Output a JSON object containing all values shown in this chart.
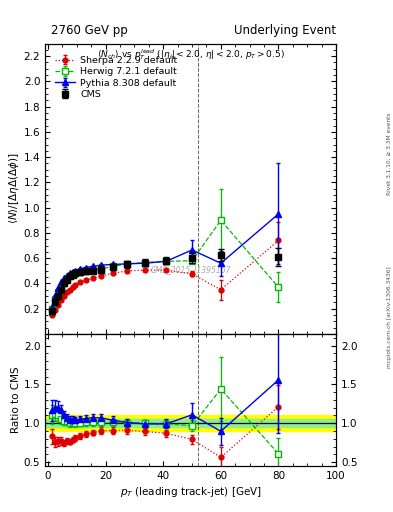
{
  "title_left": "2760 GeV pp",
  "title_right": "Underlying Event",
  "ylabel_main": "$\\langle N\\rangle/[\\Delta\\eta\\Delta(\\Delta\\phi)]$",
  "ylabel_ratio": "Ratio to CMS",
  "xlabel": "$p_T$ (leading track-jet) [GeV]",
  "inner_title": "$\\langle N_{ch}\\rangle$ vs $p_T^{lead}$ ($|\\eta_j|<2.0$, $\\eta|<2.0$, $p_T>0.5$)",
  "watermark": "CMS_2015_I1395107",
  "side_label": "Rivet 3.1.10, ≥ 3.3M events",
  "side_label2": "mcplots.cern.ch [arXiv:1306.3436]",
  "cms_x": [
    1.5,
    2.5,
    3.5,
    4.5,
    5.5,
    6.5,
    7.5,
    8.5,
    9.5,
    11,
    13,
    15.5,
    18.5,
    22.5,
    27.5,
    33.5,
    41,
    50,
    60,
    80
  ],
  "cms_y": [
    0.18,
    0.25,
    0.3,
    0.35,
    0.4,
    0.43,
    0.46,
    0.47,
    0.48,
    0.49,
    0.495,
    0.5,
    0.51,
    0.53,
    0.55,
    0.565,
    0.58,
    0.6,
    0.625,
    0.61
  ],
  "cms_yerr": [
    0.02,
    0.02,
    0.02,
    0.02,
    0.02,
    0.02,
    0.02,
    0.02,
    0.02,
    0.02,
    0.02,
    0.02,
    0.025,
    0.025,
    0.025,
    0.025,
    0.03,
    0.04,
    0.05,
    0.07
  ],
  "herwig_x": [
    1.5,
    2.5,
    3.5,
    4.5,
    5.5,
    6.5,
    7.5,
    8.5,
    9.5,
    11,
    13,
    15.5,
    18.5,
    22.5,
    27.5,
    33.5,
    41,
    50,
    60,
    80
  ],
  "herwig_y": [
    0.2,
    0.28,
    0.33,
    0.37,
    0.41,
    0.44,
    0.46,
    0.475,
    0.48,
    0.49,
    0.5,
    0.505,
    0.515,
    0.535,
    0.555,
    0.565,
    0.575,
    0.58,
    0.9,
    0.37
  ],
  "herwig_yerr": [
    0.005,
    0.005,
    0.005,
    0.005,
    0.005,
    0.005,
    0.005,
    0.005,
    0.005,
    0.005,
    0.005,
    0.005,
    0.005,
    0.005,
    0.005,
    0.005,
    0.01,
    0.015,
    0.25,
    0.12
  ],
  "pythia_x": [
    1.5,
    2.5,
    3.5,
    4.5,
    5.5,
    6.5,
    7.5,
    8.5,
    9.5,
    11,
    13,
    15.5,
    18.5,
    22.5,
    27.5,
    33.5,
    41,
    50,
    60,
    80
  ],
  "pythia_y": [
    0.21,
    0.3,
    0.36,
    0.41,
    0.44,
    0.46,
    0.48,
    0.49,
    0.5,
    0.515,
    0.525,
    0.535,
    0.545,
    0.55,
    0.555,
    0.56,
    0.575,
    0.665,
    0.56,
    0.95
  ],
  "pythia_yerr": [
    0.005,
    0.005,
    0.005,
    0.005,
    0.005,
    0.005,
    0.005,
    0.005,
    0.005,
    0.005,
    0.005,
    0.005,
    0.005,
    0.005,
    0.005,
    0.005,
    0.015,
    0.08,
    0.1,
    0.4
  ],
  "sherpa_x": [
    1.5,
    2.5,
    3.5,
    4.5,
    5.5,
    6.5,
    7.5,
    8.5,
    9.5,
    11,
    13,
    15.5,
    18.5,
    22.5,
    27.5,
    33.5,
    41,
    50,
    60,
    80
  ],
  "sherpa_y": [
    0.15,
    0.19,
    0.23,
    0.27,
    0.3,
    0.33,
    0.35,
    0.37,
    0.39,
    0.41,
    0.425,
    0.44,
    0.46,
    0.48,
    0.5,
    0.505,
    0.505,
    0.475,
    0.35,
    0.74
  ],
  "sherpa_yerr": [
    0.005,
    0.005,
    0.005,
    0.005,
    0.005,
    0.005,
    0.005,
    0.005,
    0.005,
    0.005,
    0.005,
    0.005,
    0.005,
    0.005,
    0.005,
    0.005,
    0.01,
    0.02,
    0.08,
    0.15
  ],
  "ylim_main": [
    0.0,
    2.3
  ],
  "ylim_ratio": [
    0.45,
    2.15
  ],
  "xlim": [
    -1,
    100
  ],
  "vline_x": 52,
  "cms_color": "black",
  "herwig_color": "#00bb00",
  "pythia_color": "#0000ee",
  "sherpa_color": "#dd0000",
  "ratio_band_inner": 0.05,
  "ratio_band_outer": 0.1,
  "yticks_main": [
    0.2,
    0.4,
    0.6,
    0.8,
    1.0,
    1.2,
    1.4,
    1.6,
    1.8,
    2.0,
    2.2
  ],
  "yticks_ratio": [
    0.5,
    1.0,
    1.5,
    2.0
  ]
}
